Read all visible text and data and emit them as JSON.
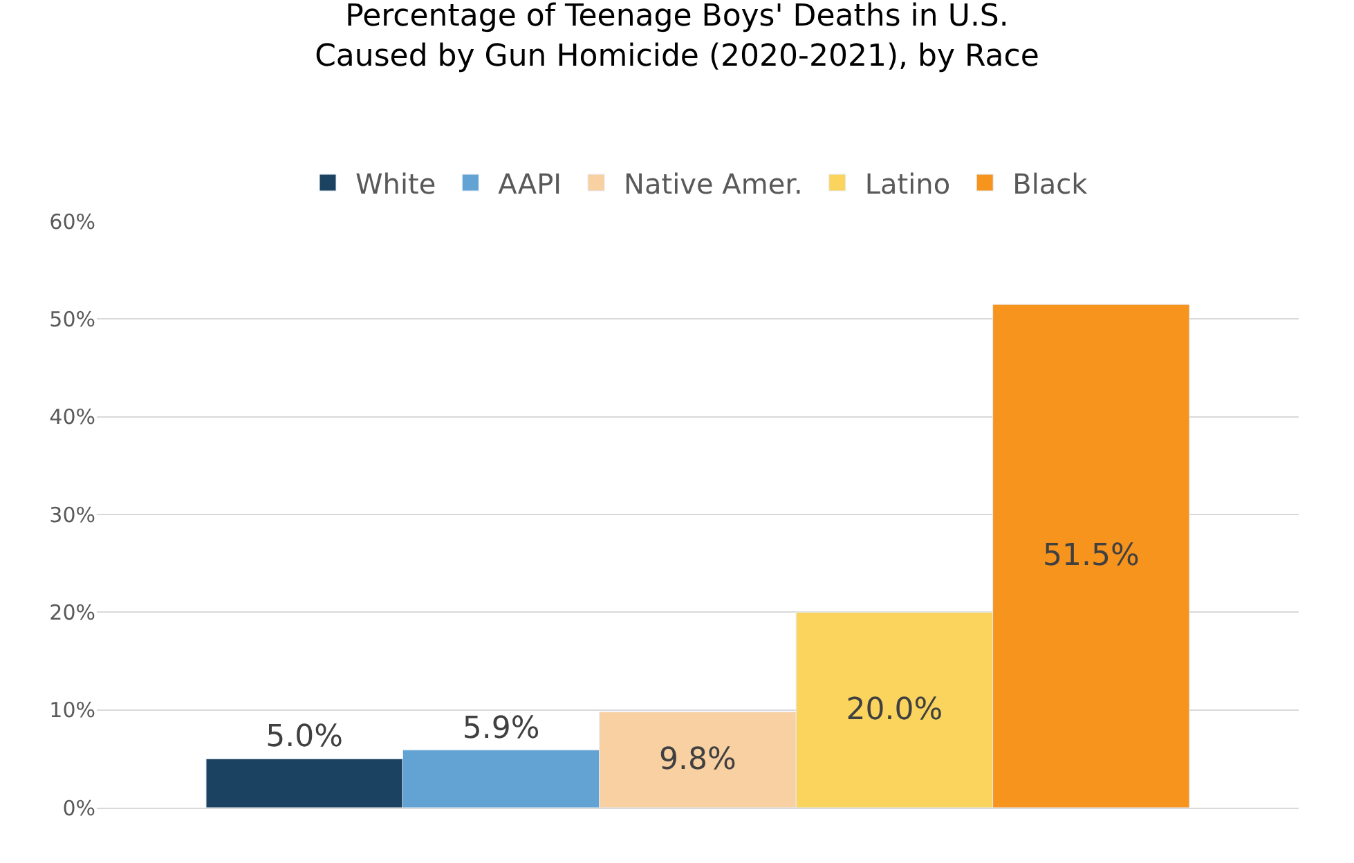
{
  "chart_data": {
    "type": "bar",
    "title": "Percentage of Teenage Boys' Deaths in U.S.\nCaused by Gun Homicide (2020-2021), by Race",
    "categories": [
      null
    ],
    "series": [
      {
        "name": "White",
        "color": "#1b4260",
        "values": [
          5.0
        ],
        "value_labels": [
          "5.0%"
        ]
      },
      {
        "name": "AAPI",
        "color": "#62a3d4",
        "values": [
          5.9
        ],
        "value_labels": [
          "5.9%"
        ]
      },
      {
        "name": "Native Amer.",
        "color": "#f8d0a2",
        "values": [
          9.8
        ],
        "value_labels": [
          "9.8%"
        ]
      },
      {
        "name": "Latino",
        "color": "#fbd45e",
        "values": [
          20.0
        ],
        "value_labels": [
          "20.0%"
        ]
      },
      {
        "name": "Black",
        "color": "#f7941e",
        "values": [
          51.5
        ],
        "value_labels": [
          "51.5%"
        ]
      }
    ],
    "ylim": [
      0,
      60
    ],
    "yticks": [
      {
        "value": 0,
        "label": "0%"
      },
      {
        "value": 10,
        "label": "10%"
      },
      {
        "value": 20,
        "label": "20%"
      },
      {
        "value": 30,
        "label": "30%"
      },
      {
        "value": 40,
        "label": "40%"
      },
      {
        "value": 50,
        "label": "50%"
      },
      {
        "value": 60,
        "label": "60%"
      }
    ],
    "grid": "y",
    "legend": "top"
  }
}
